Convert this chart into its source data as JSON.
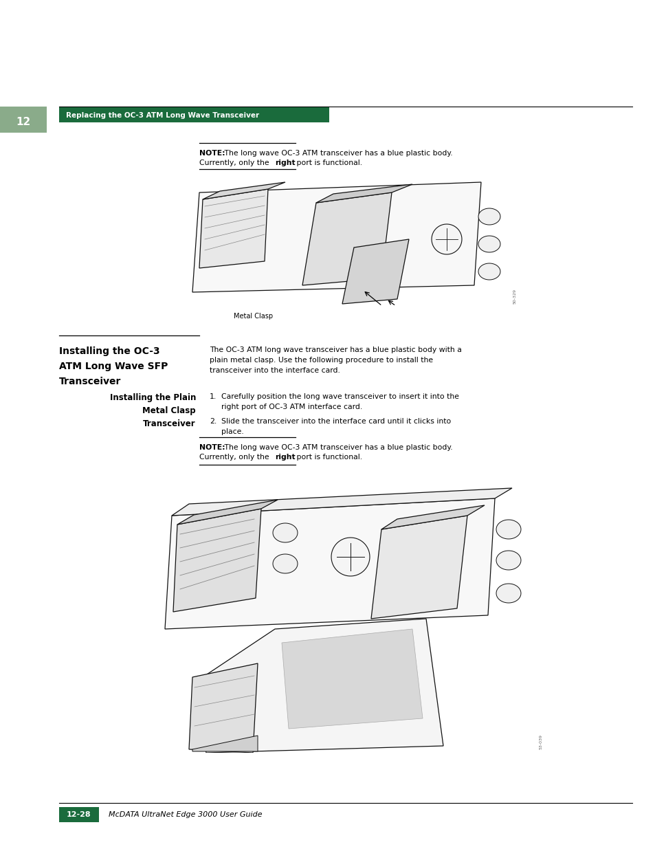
{
  "bg_color": "#ffffff",
  "page_width": 9.54,
  "page_height": 12.35,
  "header_bar_color": "#1a6b3c",
  "header_bar_text": "Replacing the OC-3 ATM Long Wave Transceiver",
  "header_bar_text_color": "#ffffff",
  "chapter_tab_color": "#8aab8a",
  "chapter_tab_text": "12",
  "note1_text_bold": "NOTE:",
  "note1_text_rest": " The long wave OC-3 ATM transceiver has a blue plastic body.",
  "note1_text_line2": "Currently, only the ¿right¿ port is functional.",
  "section_title_lines": [
    "Installing the OC-3",
    "ATM Long Wave SFP",
    "Transceiver"
  ],
  "subsection_title_lines": [
    "Installing the Plain",
    "Metal Clasp",
    "Transceiver"
  ],
  "body_text1_lines": [
    "The OC-3 ATM long wave transceiver has a blue plastic body with a",
    "plain metal clasp. Use the following procedure to install the",
    "transceiver into the interface card."
  ],
  "step1_num": "1.",
  "step1_lines": [
    "Carefully position the long wave transceiver to insert it into the",
    "right port of OC-3 ATM interface card."
  ],
  "step2_num": "2.",
  "step2_lines": [
    "Slide the transceiver into the interface card until it clicks into",
    "place."
  ],
  "note2_text_bold": "NOTE:",
  "note2_text_rest": " The long wave OC-3 ATM transceiver has a blue plastic body.",
  "note2_text_line2": "Currently, only the ¿right¿ port is functional.",
  "metal_clasp_label": "Metal Clasp",
  "fig1_number": "50-329",
  "fig2_number": "53-039",
  "footer_page_text": "12-28",
  "footer_title_text": "McDATA UltraNet Edge 3000 User Guide",
  "font_size_body": 7.8,
  "font_size_header": 7.5,
  "font_size_section": 10.0,
  "font_size_subsection": 8.5,
  "font_size_footer": 8.0,
  "font_size_note": 7.8
}
